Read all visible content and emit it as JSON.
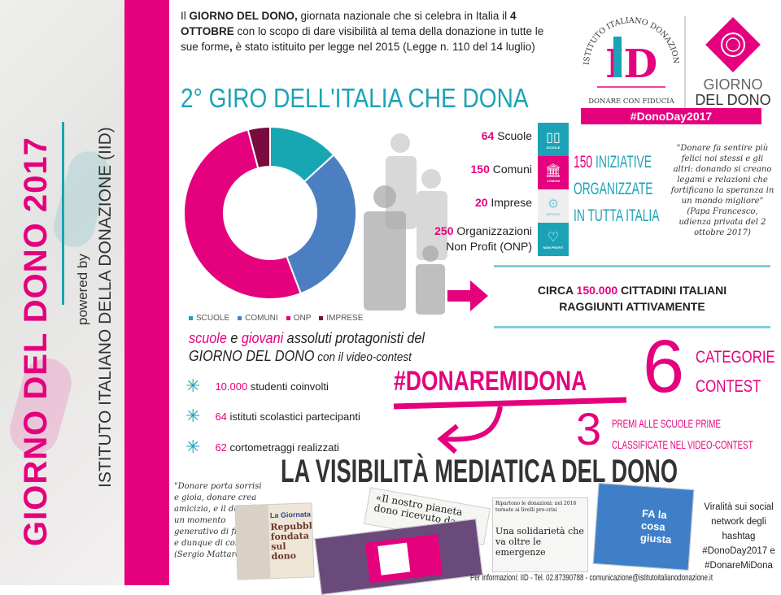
{
  "side": {
    "title": "GIORNO DEL DONO 2017",
    "powered": "powered by",
    "institute": "ISTITUTO ITALIANO DELLA DONAZIONE (IID)"
  },
  "intro": {
    "p1": "Il ",
    "b1": "GIORNO DEL DONO,",
    "p2": " giornata nazionale che si celebra in Italia il ",
    "b2": "4 OTTOBRE",
    "p3": " con lo scopo di dare visibilità al tema della donazione in tutte le sue forme",
    "b3": ",",
    "p4": " è stato istituito per legge nel 2015 (Legge n. 110 del 14 luglio)"
  },
  "logo": {
    "arc": "ISTITUTO ITALIANO DONAZIONE",
    "mark": "ID",
    "motto": "DONARE CON FIDUCIA",
    "giorno1": "GIORNO",
    "giorno2": "DEL DONO",
    "hashtag": "#DonoDay2017"
  },
  "heading": "2° GIRO DELL'ITALIA CHE DONA",
  "chart_data": {
    "type": "pie",
    "donut": true,
    "categories": [
      "SCUOLE",
      "COMUNI",
      "ONP",
      "IMPRESE"
    ],
    "values": [
      64,
      150,
      250,
      20
    ],
    "colors": [
      "#17a7b3",
      "#4b7fc1",
      "#e5007e",
      "#7a0b3e"
    ],
    "legend": "bottom"
  },
  "stats": [
    {
      "num": "64",
      "label": "Scuole"
    },
    {
      "num": "150",
      "label": "Comuni"
    },
    {
      "num": "20",
      "label": "Imprese"
    },
    {
      "num": "250",
      "label": "Organizzazioni",
      "label2": "Non Profit (ONP)"
    }
  ],
  "icons": [
    {
      "name": "book-icon",
      "caption": "SCUOLE",
      "color": "#1ba3b5"
    },
    {
      "name": "building-icon",
      "caption": "COMUNI",
      "color": "#e5007e"
    },
    {
      "name": "gears-icon",
      "caption": "IMPRESE",
      "color": "#eeeeee"
    },
    {
      "name": "heart-icon",
      "caption": "NON PROFIT",
      "color": "#1ba3b5"
    }
  ],
  "iniziative": {
    "num": "150",
    "l1": " INIZIATIVE",
    "l2": "ORGANIZZATE",
    "l3": "IN TUTTA ITALIA"
  },
  "papa": {
    "quote": "\"Donare fa sentire più felici noi stessi e gli altri: donando si creano legami e relazioni che fortificano la speranza in un mondo migliore\"",
    "source": "(Papa Francesco, udienza privata del 2 ottobre 2017)"
  },
  "circa": {
    "a": "CIRCA ",
    "num": "150.000",
    "b": " CITTADINI ITALIANI",
    "c": "RAGGIUNTI ATTIVAMENTE"
  },
  "protag": {
    "w1": "scuole",
    "w2": " e ",
    "w3": "giovani",
    "w4": " assoluti protagonisti del",
    "l2a": "GIORNO DEL DONO",
    "l2b": " con il video-contest"
  },
  "bullets": [
    {
      "num": "10.000",
      "text": " studenti coinvolti"
    },
    {
      "num": "64",
      "text": " istituti scolastici partecipanti"
    },
    {
      "num": "62",
      "text": " cortometraggi realizzati"
    }
  ],
  "contest": {
    "hashtag": "#DONAREMIDONA",
    "six": "6",
    "cat1": "CATEGORIE",
    "cat2": "CONTEST",
    "three": "3",
    "premi1": "PREMI ALLE SCUOLE PRIME",
    "premi2": "CLASSIFICATE NEL VIDEO-CONTEST"
  },
  "visibility": "LA VISIBILITÀ MEDIATICA DEL DONO",
  "mattarella": {
    "quote": "\"Donare porta sorrisi e gioia, donare crea amicizia, e il dono è un momento generativo di fiducia, e dunque di comunità\"",
    "source": "(Sergio Mattarella)"
  },
  "press": {
    "c1a": "La Giornata",
    "c1b": "Repubblica fondata sul dono",
    "c2": "«Il nostro pianeta dono ricevuto da con",
    "c3a": "Ripartono le donazioni: nel 2016 tornate ai livelli pre-crisi",
    "c3b": "Una solidarietà che va oltre le emergenze",
    "c4": "FA la cosa giusta"
  },
  "viral": "Viralità sui social network degli hashtag #DonoDay2017 e #DonareMiDona",
  "footer": "Per informazioni: IID - Tel. 02.87390788 - comunicazione@istitutoitalianodonazione.it"
}
